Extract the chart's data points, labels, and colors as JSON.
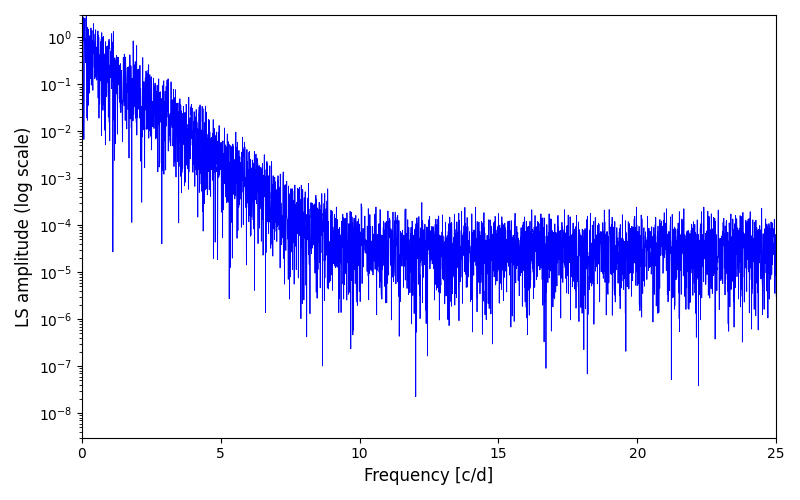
{
  "title": "",
  "xlabel": "Frequency [c/d]",
  "ylabel": "LS amplitude (log scale)",
  "line_color": "#0000ff",
  "line_width": 0.6,
  "xlim": [
    0,
    25
  ],
  "ylim_bottom": 3e-09,
  "ylim_top": 3.0,
  "yscale": "log",
  "figsize": [
    8.0,
    5.0
  ],
  "dpi": 100,
  "bg_color": "#ffffff",
  "seed": 12345,
  "n_points": 4000,
  "freq_max": 25.0
}
